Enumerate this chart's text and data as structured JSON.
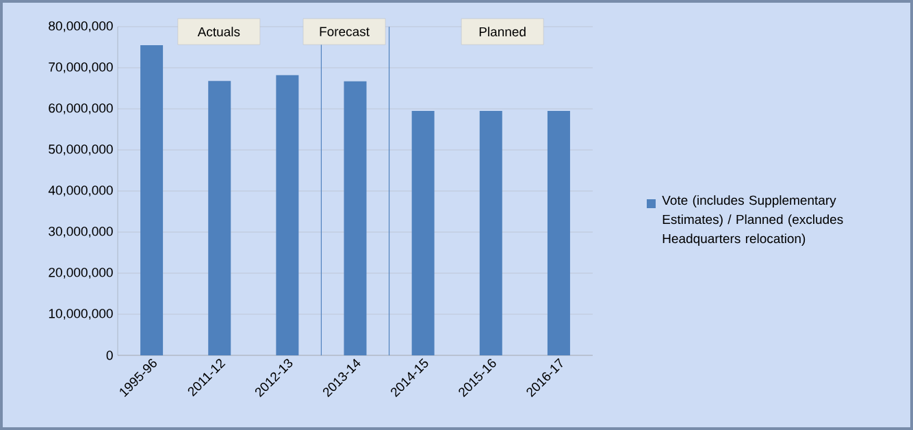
{
  "chart_data": {
    "type": "bar",
    "categories": [
      "1995-96",
      "2011-12",
      "2012-13",
      "2013-14",
      "2014-15",
      "2015-16",
      "2016-17"
    ],
    "series": [
      {
        "name": "Vote (includes Supplementary Estimates) / Planned (excludes Headquarters relocation)",
        "color": "#4f81bd",
        "values": [
          75500000,
          66800000,
          68200000,
          66700000,
          59500000,
          59500000,
          59500000
        ]
      }
    ],
    "ylim": [
      0,
      80000000
    ],
    "yticks": [
      {
        "value": 0,
        "label": "0"
      },
      {
        "value": 10000000,
        "label": "10,000,000"
      },
      {
        "value": 20000000,
        "label": "20,000,000"
      },
      {
        "value": 30000000,
        "label": "30,000,000"
      },
      {
        "value": 40000000,
        "label": "40,000,000"
      },
      {
        "value": 50000000,
        "label": "50,000,000"
      },
      {
        "value": 60000000,
        "label": "60,000,000"
      },
      {
        "value": 70000000,
        "label": "70,000,000"
      },
      {
        "value": 80000000,
        "label": "80,000,000"
      }
    ],
    "annotations": [
      "Actuals",
      "Forecast",
      "Planned"
    ],
    "grid": "y",
    "legend": "right"
  }
}
